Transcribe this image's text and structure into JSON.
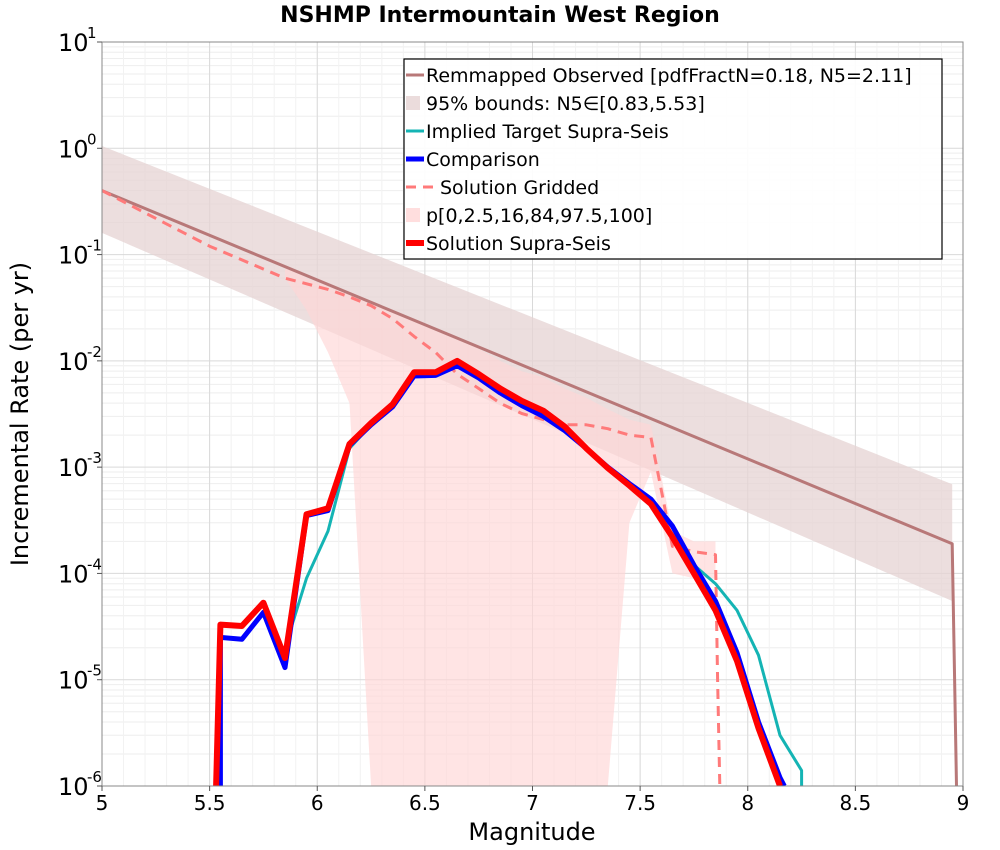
{
  "chart_data": {
    "type": "line",
    "title": "NSHMP Intermountain West Region",
    "xlabel": "Magnitude",
    "ylabel": "Incremental Rate (per yr)",
    "xlim": [
      5,
      9
    ],
    "ylim": [
      1e-06,
      10
    ],
    "y_scale": "log",
    "grid": true,
    "legend_position": "top-right",
    "x_ticks": [
      "5",
      "5.5",
      "6",
      "6.5",
      "7",
      "7.5",
      "8",
      "8.5",
      "9"
    ],
    "x_tick_values": [
      5,
      5.5,
      6,
      6.5,
      7,
      7.5,
      8,
      8.5,
      9
    ],
    "y_ticks": [
      {
        "base": "10",
        "exp": "-6",
        "value": 1e-06
      },
      {
        "base": "10",
        "exp": "-5",
        "value": 1e-05
      },
      {
        "base": "10",
        "exp": "-4",
        "value": 0.0001
      },
      {
        "base": "10",
        "exp": "-3",
        "value": 0.001
      },
      {
        "base": "10",
        "exp": "-2",
        "value": 0.01
      },
      {
        "base": "10",
        "exp": "-1",
        "value": 0.1
      },
      {
        "base": "10",
        "exp": "0",
        "value": 1
      },
      {
        "base": "10",
        "exp": "1",
        "value": 10
      }
    ],
    "series": [
      {
        "name": "Remmapped Observed [pdfFractN=0.18, N5=2.11]",
        "kind": "line",
        "color": "#b87878",
        "x": [
          5.0,
          8.95,
          8.97
        ],
        "y": [
          0.4,
          0.00019,
          1e-06
        ]
      },
      {
        "name": "95% bounds: N5∈[0.83,5.53]",
        "kind": "band",
        "color": "#e6d3d3",
        "x": [
          5.0,
          8.95
        ],
        "y_low": [
          0.16,
          5.5e-05
        ],
        "y_high": [
          1.05,
          0.00069
        ]
      },
      {
        "name": "Implied Target Supra-Seis",
        "kind": "line",
        "color": "#14b4b4",
        "x": [
          5.85,
          5.95,
          6.05,
          6.15,
          6.25,
          6.35,
          6.45,
          6.55,
          6.65,
          6.75,
          6.85,
          6.95,
          7.05,
          7.15,
          7.25,
          7.35,
          7.45,
          7.55,
          7.65,
          7.75,
          7.85,
          7.95,
          8.05,
          8.15,
          8.25,
          8.25
        ],
        "y": [
          2e-05,
          9e-05,
          0.00025,
          0.0015,
          0.0025,
          0.0037,
          0.0072,
          0.0073,
          0.009,
          0.0068,
          0.005,
          0.0038,
          0.003,
          0.0022,
          0.0015,
          0.001,
          0.0007,
          0.00045,
          0.00022,
          0.00012,
          8e-05,
          4.5e-05,
          1.7e-05,
          3e-06,
          1.4e-06,
          1e-06
        ]
      },
      {
        "name": "Comparison",
        "kind": "line",
        "color": "#0000ff",
        "x": [
          5.55,
          5.55,
          5.65,
          5.75,
          5.85,
          5.95,
          6.05,
          6.15,
          6.25,
          6.35,
          6.45,
          6.55,
          6.65,
          6.75,
          6.85,
          6.95,
          7.05,
          7.15,
          7.25,
          7.35,
          7.45,
          7.55,
          7.65,
          7.75,
          7.85,
          7.95,
          8.05,
          8.15,
          8.17
        ],
        "y": [
          1e-06,
          2.5e-05,
          2.4e-05,
          4.3e-05,
          1.3e-05,
          0.00035,
          0.00039,
          0.0016,
          0.0025,
          0.0037,
          0.0072,
          0.0073,
          0.009,
          0.0069,
          0.005,
          0.0038,
          0.003,
          0.0022,
          0.0015,
          0.001,
          0.0007,
          0.0005,
          0.00028,
          0.00012,
          5.5e-05,
          1.8e-05,
          4e-06,
          1.2e-06,
          1e-06
        ]
      },
      {
        "name": "Solution Gridded",
        "kind": "line",
        "color": "#ff7a7a",
        "dashed": true,
        "x": [
          5.0,
          5.5,
          5.85,
          6.05,
          6.15,
          6.25,
          6.35,
          6.45,
          6.55,
          6.65,
          6.75,
          6.85,
          6.95,
          7.05,
          7.15,
          7.25,
          7.35,
          7.45,
          7.55,
          7.65,
          7.75,
          7.85,
          7.86,
          7.87
        ],
        "y": [
          0.4,
          0.12,
          0.06,
          0.047,
          0.04,
          0.033,
          0.025,
          0.017,
          0.012,
          0.0075,
          0.0055,
          0.004,
          0.0032,
          0.0028,
          0.0025,
          0.0025,
          0.0023,
          0.002,
          0.0019,
          0.00018,
          0.00016,
          0.00015,
          1e-05,
          1e-06
        ]
      },
      {
        "name": "p[0,2.5,16,84,97.5,100]",
        "kind": "band",
        "color": "#ffd6d6",
        "x": [
          5.85,
          5.95,
          6.05,
          6.15,
          6.25,
          6.35,
          6.45,
          6.55,
          6.65,
          6.75,
          6.85,
          6.95,
          7.05,
          7.15,
          7.25,
          7.35,
          7.45,
          7.55,
          7.65,
          7.75,
          7.85
        ],
        "y_low": [
          0.06,
          0.03,
          0.012,
          0.004,
          1e-06,
          1e-06,
          1e-06,
          1e-06,
          1e-06,
          1e-06,
          1e-06,
          1e-06,
          1e-06,
          1e-06,
          1e-06,
          1e-06,
          0.0003,
          0.0009,
          0.0001,
          9e-05,
          9e-05
        ],
        "y_high": [
          0.08,
          0.06,
          0.05,
          0.042,
          0.036,
          0.03,
          0.025,
          0.02,
          0.016,
          0.013,
          0.01,
          0.008,
          0.007,
          0.0055,
          0.0045,
          0.0035,
          0.0028,
          0.0025,
          0.00025,
          0.0002,
          0.0002
        ]
      },
      {
        "name": "Solution Supra-Seis",
        "kind": "line",
        "color": "#ff0000",
        "x": [
          5.53,
          5.55,
          5.65,
          5.75,
          5.85,
          5.95,
          6.05,
          6.15,
          6.25,
          6.35,
          6.45,
          6.55,
          6.65,
          6.75,
          6.85,
          6.95,
          7.05,
          7.15,
          7.25,
          7.35,
          7.45,
          7.55,
          7.65,
          7.75,
          7.85,
          7.95,
          8.05,
          8.15,
          8.15
        ],
        "y": [
          1e-06,
          3.3e-05,
          3.2e-05,
          5.3e-05,
          1.6e-05,
          0.00036,
          0.00041,
          0.00165,
          0.0026,
          0.0039,
          0.0078,
          0.0078,
          0.01,
          0.0075,
          0.0055,
          0.0042,
          0.0034,
          0.0024,
          0.0015,
          0.00098,
          0.00067,
          0.00045,
          0.00022,
          0.0001,
          4.5e-05,
          1.5e-05,
          3.5e-06,
          1e-06,
          1e-06
        ]
      }
    ]
  }
}
